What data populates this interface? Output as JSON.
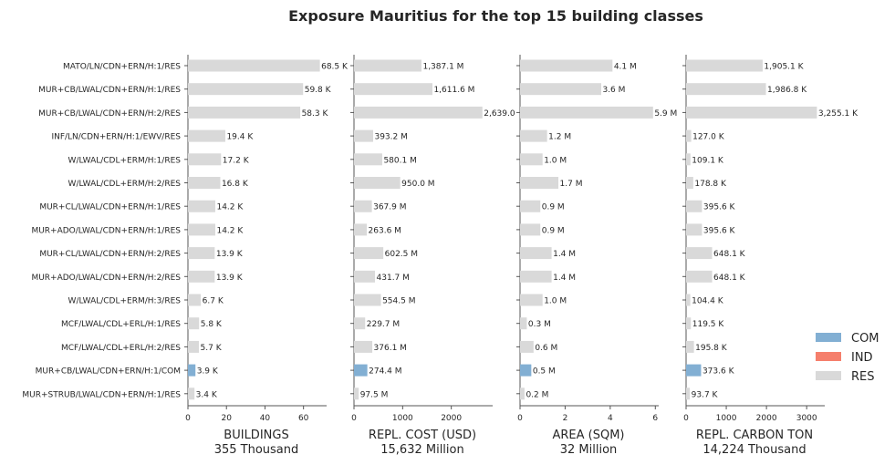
{
  "chart_data": {
    "type": "bar",
    "orientation": "horizontal",
    "title": "Exposure Mauritius for the top 15 building classes",
    "categories": [
      "MATO/LN/CDN+ERN/H:1/RES",
      "MUR+CB/LWAL/CDN+ERN/H:1/RES",
      "MUR+CB/LWAL/CDN+ERN/H:2/RES",
      "INF/LN/CDN+ERN/H:1/EWV/RES",
      "W/LWAL/CDL+ERM/H:1/RES",
      "W/LWAL/CDL+ERM/H:2/RES",
      "MUR+CL/LWAL/CDN+ERN/H:1/RES",
      "MUR+ADO/LWAL/CDN+ERN/H:1/RES",
      "MUR+CL/LWAL/CDN+ERN/H:2/RES",
      "MUR+ADO/LWAL/CDN+ERN/H:2/RES",
      "W/LWAL/CDL+ERM/H:3/RES",
      "MCF/LWAL/CDL+ERL/H:1/RES",
      "MCF/LWAL/CDL+ERL/H:2/RES",
      "MUR+CB/LWAL/CDN+ERN/H:1/COM",
      "MUR+STRUB/LWAL/CDN+ERN/H:1/RES"
    ],
    "occupancy": [
      "RES",
      "RES",
      "RES",
      "RES",
      "RES",
      "RES",
      "RES",
      "RES",
      "RES",
      "RES",
      "RES",
      "RES",
      "RES",
      "COM",
      "RES"
    ],
    "legend": {
      "placement": "right",
      "entries": [
        {
          "label": "COM",
          "color": "#82afd3"
        },
        {
          "label": "IND",
          "color": "#f57f6c"
        },
        {
          "label": "RES",
          "color": "#d9d9d9"
        }
      ]
    },
    "panels": [
      {
        "xlabel": "BUILDINGS",
        "total": "355 Thousand",
        "xlim": [
          0,
          72
        ],
        "ticks": [
          0,
          20,
          40,
          60
        ],
        "tick_labels": [
          "0",
          "20",
          "40",
          "60"
        ],
        "values": [
          68.5,
          59.8,
          58.3,
          19.4,
          17.2,
          16.8,
          14.2,
          14.2,
          13.9,
          13.9,
          6.7,
          5.8,
          5.7,
          3.9,
          3.4
        ],
        "labels": [
          "68.5 K",
          "59.8 K",
          "58.3 K",
          "19.4 K",
          "17.2 K",
          "16.8 K",
          "14.2 K",
          "14.2 K",
          "13.9 K",
          "13.9 K",
          "6.7 K",
          "5.8 K",
          "5.7 K",
          "3.9 K",
          "3.4 K"
        ]
      },
      {
        "xlabel": "REPL. COST (USD)",
        "total": "15,632 Million",
        "xlim": [
          0,
          2850
        ],
        "ticks": [
          0,
          1000,
          2000
        ],
        "tick_labels": [
          "0",
          "1000",
          "2000"
        ],
        "values": [
          1387.1,
          1611.6,
          2639.0,
          393.2,
          580.1,
          950.0,
          367.9,
          263.6,
          602.5,
          431.7,
          554.5,
          229.7,
          376.1,
          274.4,
          97.5
        ],
        "labels": [
          "1,387.1 M",
          "1,611.6 M",
          "2,639.0",
          "393.2 M",
          "580.1 M",
          "950.0 M",
          "367.9 M",
          "263.6 M",
          "602.5 M",
          "431.7 M",
          "554.5 M",
          "229.7 M",
          "376.1 M",
          "274.4 M",
          "97.5 M"
        ]
      },
      {
        "xlabel": "AREA (SQM)",
        "total": "32 Million",
        "xlim": [
          0,
          6.15
        ],
        "ticks": [
          0,
          2,
          4,
          6
        ],
        "tick_labels": [
          "0",
          "2",
          "4",
          "6"
        ],
        "values": [
          4.1,
          3.6,
          5.9,
          1.2,
          1.0,
          1.7,
          0.9,
          0.9,
          1.4,
          1.4,
          1.0,
          0.3,
          0.6,
          0.5,
          0.2
        ],
        "labels": [
          "4.1 M",
          "3.6 M",
          "5.9 M",
          "1.2 M",
          "1.0 M",
          "1.7 M",
          "0.9 M",
          "0.9 M",
          "1.4 M",
          "1.4 M",
          "1.0 M",
          "0.3 M",
          "0.6 M",
          "0.5 M",
          "0.2 M"
        ]
      },
      {
        "xlabel": "REPL. CARBON TON",
        "total": "14,224 Thousand",
        "xlim": [
          0,
          3450
        ],
        "ticks": [
          0,
          1000,
          2000,
          3000
        ],
        "tick_labels": [
          "0",
          "1000",
          "2000",
          "3000"
        ],
        "values": [
          1905.1,
          1986.8,
          3255.1,
          127.0,
          109.1,
          178.8,
          395.6,
          395.6,
          648.1,
          648.1,
          104.4,
          119.5,
          195.8,
          373.6,
          93.7
        ],
        "labels": [
          "1,905.1 K",
          "1,986.8 K",
          "3,255.1 K",
          "127.0 K",
          "109.1 K",
          "178.8 K",
          "395.6 K",
          "395.6 K",
          "648.1 K",
          "648.1 K",
          "104.4 K",
          "119.5 K",
          "195.8 K",
          "373.6 K",
          "93.7 K"
        ]
      }
    ]
  }
}
